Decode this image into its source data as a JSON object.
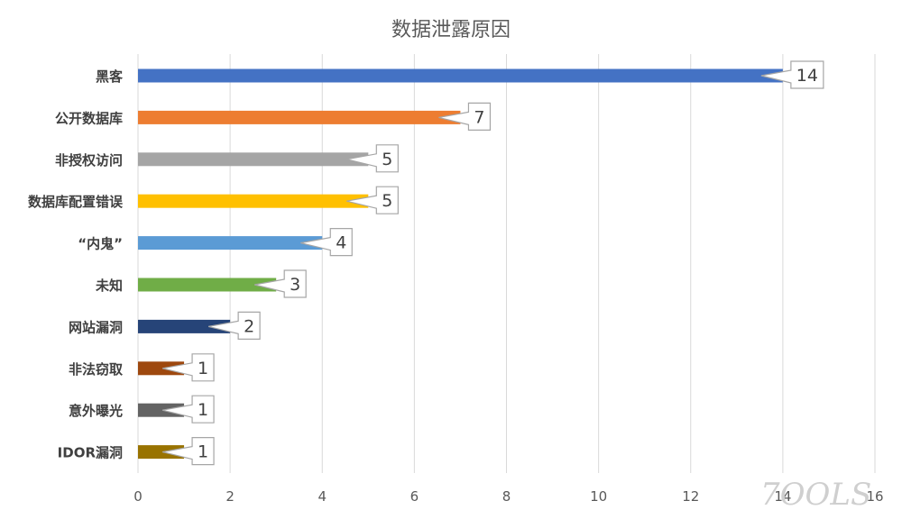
{
  "chart_data": {
    "type": "bar",
    "orientation": "horizontal",
    "title": "数据泄露原因",
    "categories": [
      "黑客",
      "公开数据库",
      "非授权访问",
      "数据库配置错误",
      "“内鬼”",
      "未知",
      "网站漏洞",
      "非法窃取",
      "意外曝光",
      "IDOR漏洞"
    ],
    "values": [
      14,
      7,
      5,
      5,
      4,
      3,
      2,
      1,
      1,
      1
    ],
    "colors": [
      "#4472C4",
      "#ED7D31",
      "#A5A5A5",
      "#FFC000",
      "#5B9BD5",
      "#70AD47",
      "#264478",
      "#9E480E",
      "#636363",
      "#997300"
    ],
    "xlim": [
      0,
      16
    ],
    "xticks": [
      0,
      2,
      4,
      6,
      8,
      10,
      12,
      14,
      16
    ],
    "grid": true,
    "legend": "none",
    "xlabel": "",
    "ylabel": ""
  },
  "watermark": "7OOLS"
}
